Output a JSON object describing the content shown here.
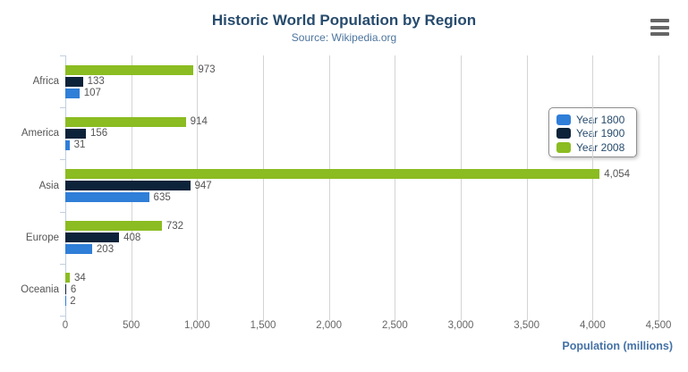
{
  "chart_data": {
    "type": "bar",
    "orientation": "horizontal",
    "title": "Historic World Population by Region",
    "subtitle": "Source: Wikipedia.org",
    "categories": [
      "Africa",
      "America",
      "Asia",
      "Europe",
      "Oceania"
    ],
    "series": [
      {
        "name": "Year 1800",
        "color": "#2f7ed8",
        "values": [
          107,
          31,
          635,
          203,
          2
        ]
      },
      {
        "name": "Year 1900",
        "color": "#0d233a",
        "values": [
          133,
          156,
          947,
          408,
          6
        ]
      },
      {
        "name": "Year 2008",
        "color": "#8bbc21",
        "values": [
          973,
          914,
          4054,
          732,
          34
        ]
      }
    ],
    "bar_draw_order_top_to_bottom": [
      "Year 2008",
      "Year 1900",
      "Year 1800"
    ],
    "data_labels_shown": true,
    "xlabel": "Population (millions)",
    "xlim": [
      0,
      4500
    ],
    "tick_step": 500,
    "tick_labels": [
      "0",
      "500",
      "1,000",
      "1,500",
      "2,000",
      "2,500",
      "3,000",
      "3,500",
      "4,000",
      "4,500"
    ],
    "grid": "vertical-only",
    "legend_position": "right-middle"
  },
  "toolbar": {
    "export_menu_icon": "hamburger-icon"
  },
  "theme": {
    "title_color": "#274b6d",
    "subtitle_color": "#4d759e",
    "axis_title_color": "#4572a7",
    "tick_label_color": "#666666",
    "category_label_color": "#555555",
    "data_label_color": "#555555",
    "grid_color": "#d4d4d4",
    "axis_line_color": "#c0d0e0",
    "legend_border_color": "#909090",
    "legend_text_color": "#274b6d",
    "burger_color": "#666666",
    "background": "#ffffff"
  }
}
